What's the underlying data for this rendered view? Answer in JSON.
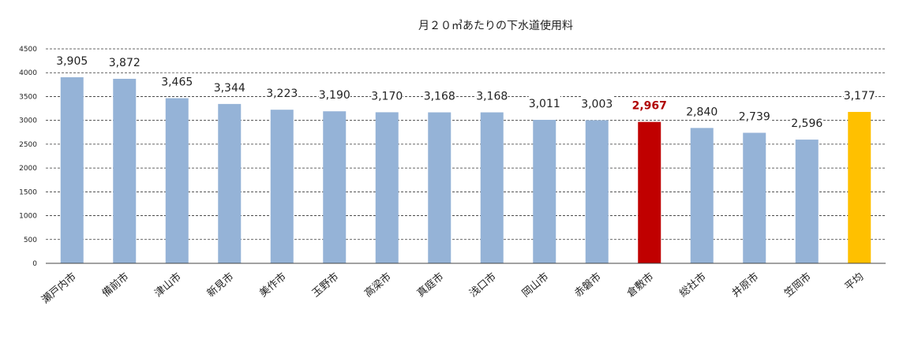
{
  "chart_data": {
    "type": "bar",
    "title": "月２０㎥あたりの下水道使用料",
    "categories": [
      "瀬戸内市",
      "備前市",
      "津山市",
      "新見市",
      "美作市",
      "玉野市",
      "高梁市",
      "真庭市",
      "浅口市",
      "岡山市",
      "赤磐市",
      "倉敷市",
      "総社市",
      "井原市",
      "笠岡市",
      "平均"
    ],
    "values": [
      3905,
      3872,
      3465,
      3344,
      3223,
      3190,
      3170,
      3168,
      3168,
      3011,
      3003,
      2967,
      2840,
      2739,
      2596,
      3177
    ],
    "value_labels": [
      "3,905",
      "3,872",
      "3,465",
      "3,344",
      "3,223",
      "3,190",
      "3,170",
      "3,168",
      "3,168",
      "3,011",
      "3,003",
      "2,967",
      "2,840",
      "2,739",
      "2,596",
      "3,177"
    ],
    "yticks": [
      "0",
      "500",
      "1000",
      "1500",
      "2000",
      "2500",
      "3000",
      "3500",
      "4000",
      "4500"
    ],
    "ylim": [
      0,
      4500
    ],
    "grid": true,
    "colors": {
      "default": "#95b3d7",
      "highlight": "#c00000",
      "average": "#ffc000",
      "highlight_label": "#b00000"
    },
    "highlight_index": 11,
    "average_index": 15
  }
}
